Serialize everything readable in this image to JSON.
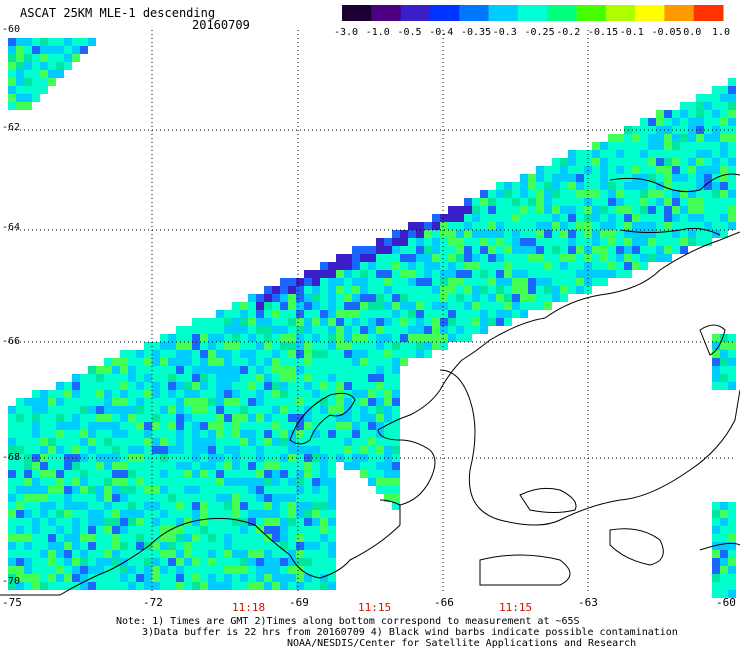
{
  "header": {
    "title": "ASCAT 25KM MLE-1 descending",
    "date": "20160709"
  },
  "colorbar": {
    "labels": [
      "-3.0",
      "-1.0",
      "-0.5",
      "-0.4",
      "-0.35",
      "-0.3",
      "-0.25",
      "-0.2",
      "-0.15",
      "-0.1",
      "-0.05",
      "0.0",
      "1.0"
    ],
    "colors": [
      "#1a0033",
      "#4b0082",
      "#3a1fc8",
      "#0033ff",
      "#0077ff",
      "#00ccff",
      "#00ffd5",
      "#00ff80",
      "#44ff00",
      "#b0ff00",
      "#ffff00",
      "#ff9900",
      "#ff3300"
    ]
  },
  "map": {
    "lat_labels": [
      "-60",
      "-62",
      "-64",
      "-66",
      "-68",
      "-70"
    ],
    "lon_labels": [
      "-75",
      "-72",
      "-69",
      "-66",
      "-63",
      "-60"
    ],
    "time_labels": [
      "11:18",
      "11:15",
      "11:15"
    ],
    "swath_colors": [
      "#00ffcc",
      "#00ccff",
      "#44ff55",
      "#1a66ff",
      "#3a1fc8",
      "#00e6a0"
    ]
  },
  "notes": {
    "line1": "Note: 1) Times are GMT 2)Times along bottom correspond to measurement at ~65S",
    "line2": "3)Data buffer is 22 hrs from 20160709 4) Black wind barbs indicate possible contamination",
    "line3": "NOAA/NESDIS/Center for Satellite Applications and Research"
  }
}
